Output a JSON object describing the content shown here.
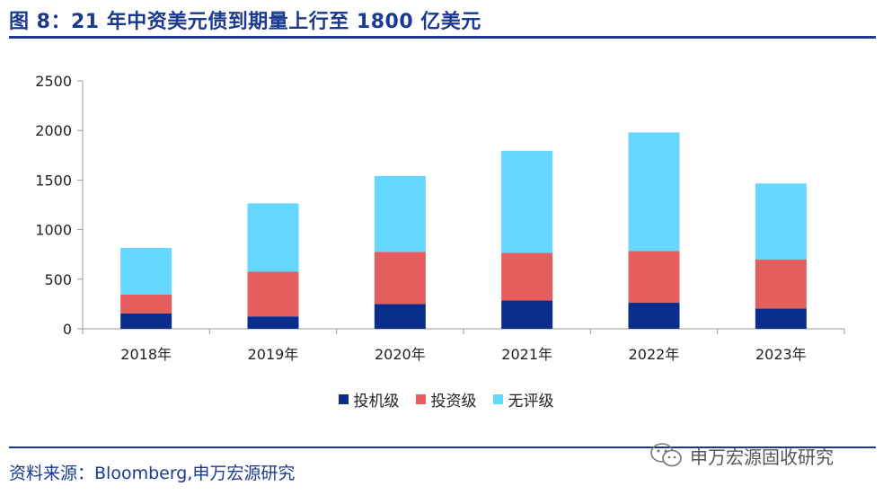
{
  "figure": {
    "title": "图 8：21 年中资美元债到期量上行至 1800 亿美元",
    "source": "资料来源：Bloomberg,申万宏源研究",
    "watermark": "申万宏源固收研究"
  },
  "chart_data": {
    "type": "bar",
    "stacked": true,
    "title": "图 8：21 年中资美元债到期量上行至 1800 亿美元",
    "xlabel": "",
    "ylabel": "",
    "ylim": [
      0,
      2500
    ],
    "yticks": [
      0,
      500,
      1000,
      1500,
      2000,
      2500
    ],
    "ytick_labels": [
      "0",
      "500",
      "1000",
      "1500",
      "2000",
      "2500"
    ],
    "categories": [
      "2018年",
      "2019年",
      "2020年",
      "2021年",
      "2022年",
      "2023年"
    ],
    "series": [
      {
        "name": "投机级",
        "color": "#0a2d8c",
        "values": [
          155,
          125,
          250,
          285,
          265,
          205
        ]
      },
      {
        "name": "投资级",
        "color": "#e45e5e",
        "values": [
          190,
          450,
          525,
          480,
          520,
          495
        ]
      },
      {
        "name": "无评级",
        "color": "#66d7ff",
        "values": [
          470,
          690,
          765,
          1030,
          1195,
          765
        ]
      }
    ],
    "legend_position": "bottom-center",
    "grid": false
  }
}
